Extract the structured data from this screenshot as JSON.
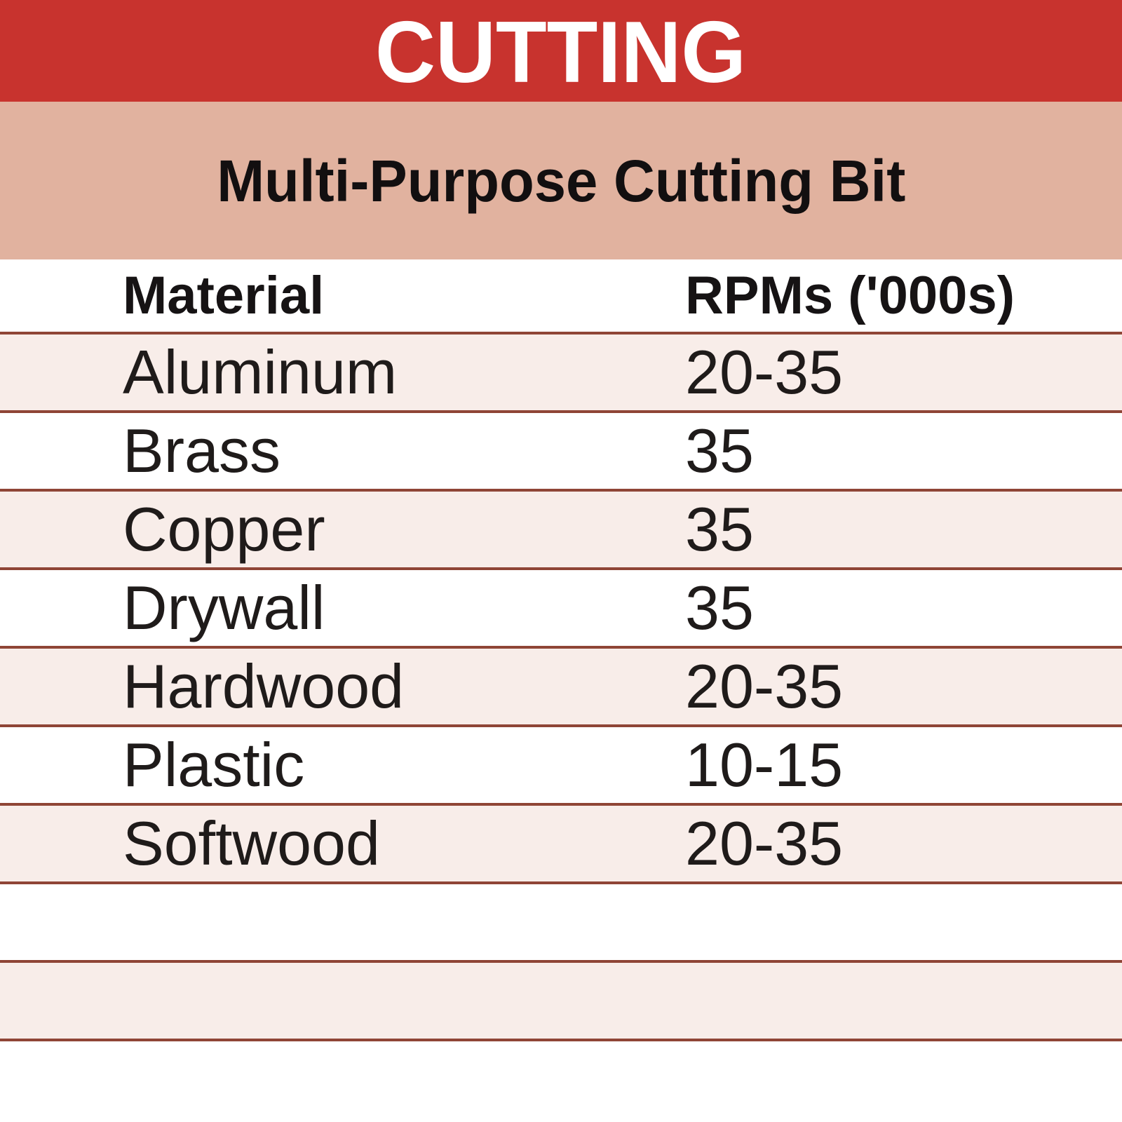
{
  "chart_data": {
    "type": "table",
    "title": "CUTTING",
    "subtitle": "Multi-Purpose Cutting Bit",
    "columns": [
      "Material",
      "RPMs ('000s)"
    ],
    "rows": [
      [
        "Aluminum",
        "20-35"
      ],
      [
        "Brass",
        "35"
      ],
      [
        "Copper",
        "35"
      ],
      [
        "Drywall",
        "35"
      ],
      [
        "Hardwood",
        "20-35"
      ],
      [
        "Plastic",
        "10-15"
      ],
      [
        "Softwood",
        "20-35"
      ]
    ],
    "empty_trailing_rows": 2,
    "layout": {
      "banded_rows": true,
      "band_pattern": "data rows alternate pink/white starting pink; two empty banded rows after Softwood"
    }
  },
  "colors": {
    "banner_bg": "#C8332E",
    "banner_text": "#FFFFFF",
    "subtitle_band_bg": "#E1B29F",
    "subtitle_text": "#120F10",
    "row_pink_bg": "#F8EDE9",
    "row_white_bg": "#FFFFFF",
    "row_divider": "#8F4536",
    "body_text": "#1F1B1A"
  }
}
